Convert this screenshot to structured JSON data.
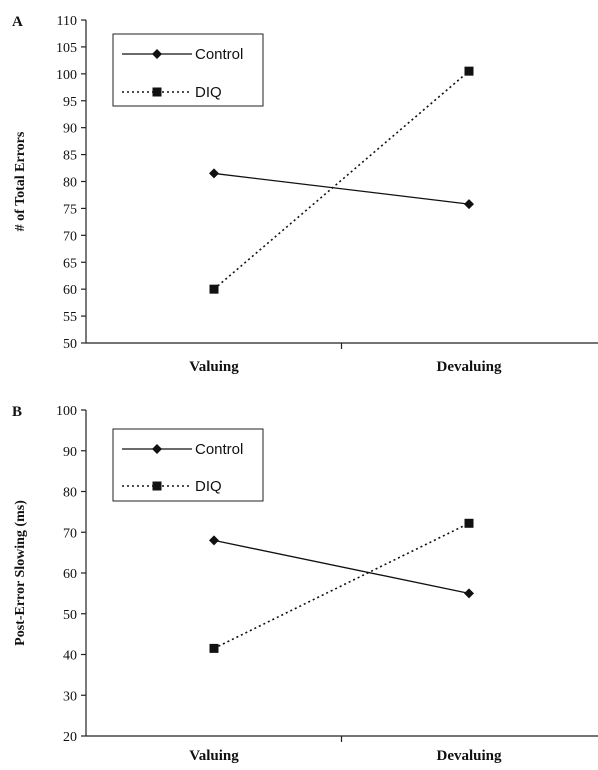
{
  "chart_data": [
    {
      "panel": "A",
      "type": "line",
      "title": "",
      "xlabel": "",
      "ylabel": "# of Total Errors",
      "categories": [
        "Valuing",
        "Devaluing"
      ],
      "ylim": [
        50,
        110
      ],
      "yticks": [
        50,
        55,
        60,
        65,
        70,
        75,
        80,
        85,
        90,
        95,
        100,
        105,
        110
      ],
      "grid": false,
      "legend_position": "top-left",
      "series": [
        {
          "name": "Control",
          "values": [
            81.5,
            75.8
          ],
          "marker": "diamond",
          "line": "solid",
          "color": "#111111"
        },
        {
          "name": "DIQ",
          "values": [
            60,
            100.5
          ],
          "marker": "square",
          "line": "dotted",
          "color": "#111111"
        }
      ]
    },
    {
      "panel": "B",
      "type": "line",
      "title": "",
      "xlabel": "",
      "ylabel": "Post-Error Slowing (ms)",
      "categories": [
        "Valuing",
        "Devaluing"
      ],
      "ylim": [
        20,
        100
      ],
      "yticks": [
        20,
        30,
        40,
        50,
        60,
        70,
        80,
        90,
        100
      ],
      "grid": false,
      "legend_position": "top-left",
      "series": [
        {
          "name": "Control",
          "values": [
            68,
            55
          ],
          "marker": "diamond",
          "line": "solid",
          "color": "#111111"
        },
        {
          "name": "DIQ",
          "values": [
            41.5,
            72.2
          ],
          "marker": "square",
          "line": "dotted",
          "color": "#111111"
        }
      ]
    }
  ]
}
